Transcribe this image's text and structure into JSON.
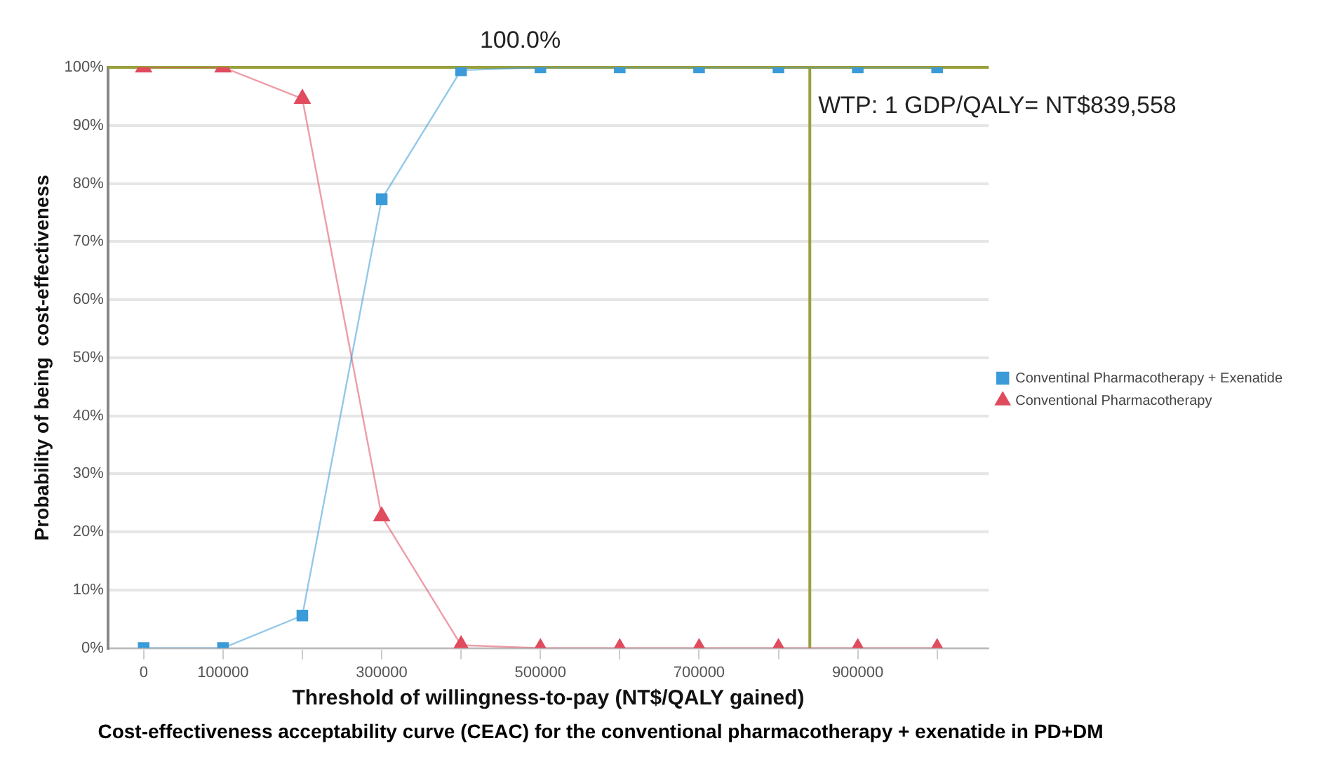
{
  "chart_data": {
    "type": "line",
    "xlabel": "Threshold of willingness-to-pay (NT$/QALY gained)",
    "ylabel": "Probability of being  cost-effectiveness",
    "x": [
      0,
      100000,
      200000,
      300000,
      400000,
      500000,
      600000,
      700000,
      800000,
      900000,
      1000000
    ],
    "series": [
      {
        "name": "Conventinal Pharmacotherapy + Exenatide",
        "color": "#3b9bd8",
        "marker": "square",
        "values": [
          0,
          0,
          5.6,
          77.3,
          99.5,
          100,
          100,
          100,
          100,
          100,
          100
        ]
      },
      {
        "name": "Conventional Pharmacotherapy",
        "color": "#e04b5e",
        "marker": "triangle",
        "values": [
          100,
          100,
          94.6,
          22.7,
          0.5,
          0,
          0,
          0,
          0,
          0,
          0
        ]
      }
    ],
    "xlim": [
      -45000,
      1065000
    ],
    "xticks": [
      0,
      100000,
      {
        "value": 200000,
        "label": null
      },
      300000,
      {
        "value": 400000,
        "label": null
      },
      500000,
      {
        "value": 600000,
        "label": null
      },
      700000,
      {
        "value": 800000,
        "label": null
      },
      900000,
      {
        "value": 1000000,
        "label": null
      }
    ],
    "ylim": [
      0,
      100
    ],
    "yticks": [
      {
        "value": 0,
        "label": "0%"
      },
      {
        "value": 10,
        "label": "10%"
      },
      {
        "value": 20,
        "label": "20%"
      },
      {
        "value": 30,
        "label": "30%"
      },
      {
        "value": 40,
        "label": "40%"
      },
      {
        "value": 50,
        "label": "50%"
      },
      {
        "value": 60,
        "label": "60%"
      },
      {
        "value": 70,
        "label": "70%"
      },
      {
        "value": 80,
        "label": "80%"
      },
      {
        "value": 90,
        "label": "90%"
      },
      {
        "value": 100,
        "label": "100%"
      }
    ],
    "ref_lines": [
      {
        "axis": "y",
        "value": 100,
        "label": "100.0%",
        "color": "#9aa03c"
      },
      {
        "axis": "x",
        "value": 839558,
        "label": "WTP: 1 GDP/QALY= NT$839,558",
        "color": "#9aa03c"
      }
    ],
    "annotations": [
      "Cost-effectiveness acceptability curve (CEAC) for the conventional pharmacotherapy + exenatide in PD+DM"
    ],
    "grid": "y",
    "legend": "right",
    "line_style": "solid"
  }
}
